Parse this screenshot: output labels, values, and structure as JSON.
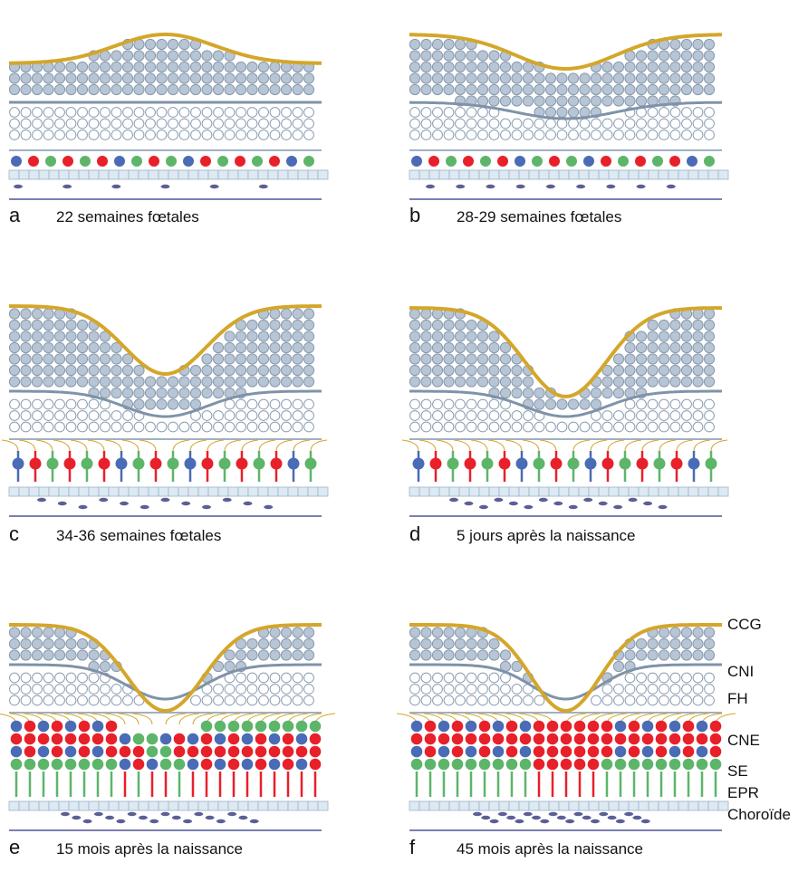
{
  "panels": [
    {
      "letter": "a",
      "caption": "22 semaines fœtales"
    },
    {
      "letter": "b",
      "caption": "28-29 semaines fœtales"
    },
    {
      "letter": "c",
      "caption": "34-36 semaines fœtales"
    },
    {
      "letter": "d",
      "caption": "5 jours après la naissance"
    },
    {
      "letter": "e",
      "caption": "15 mois après la naissance"
    },
    {
      "letter": "f",
      "caption": "45 mois après la naissance"
    }
  ],
  "layer_labels": [
    "CCG",
    "CNI",
    "FH",
    "CNE",
    "SE",
    "EPR",
    "Choroïde"
  ]
}
